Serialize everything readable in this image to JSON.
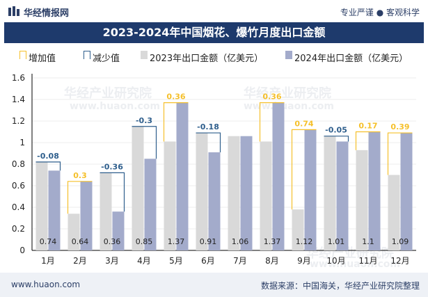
{
  "header": {
    "brand": "华经情报网",
    "slogan": "专业严谨 ● 客观科学",
    "title": "2023-2024年中国烟花、爆竹月度出口金额"
  },
  "legend": {
    "increase": "增加值",
    "decrease": "减少值",
    "series2023": "2023年出口金额（亿美元）",
    "series2024": "2024年出口金额（亿美元）"
  },
  "colors": {
    "bar2023": "#d9d9d9",
    "bar2024": "#a3abcb",
    "increase": "#f5c02b",
    "decrease": "#2e5e8c",
    "title_bg": "#1e3a6c"
  },
  "chart_data": {
    "type": "bar",
    "categories": [
      "1月",
      "2月",
      "3月",
      "4月",
      "5月",
      "6月",
      "7月",
      "8月",
      "9月",
      "10月",
      "11月",
      "12月"
    ],
    "series": [
      {
        "name": "2023年出口金额（亿美元）",
        "values": [
          0.82,
          0.34,
          0.72,
          1.15,
          1.01,
          1.09,
          1.06,
          1.01,
          0.38,
          1.06,
          0.93,
          0.7
        ]
      },
      {
        "name": "2024年出口金额（亿美元）",
        "values": [
          0.74,
          0.64,
          0.36,
          0.85,
          1.37,
          0.91,
          1.06,
          1.37,
          1.12,
          1.01,
          1.1,
          1.09
        ]
      }
    ],
    "change_labels": [
      "-0.08",
      "0.3",
      "-0.36",
      "-0.3",
      "0.36",
      "-0.18",
      "",
      "0.36",
      "0.74",
      "-0.05",
      "0.17",
      "0.39"
    ],
    "value_labels": [
      "0.74",
      "0.64",
      "0.36",
      "0.85",
      "1.37",
      "0.91",
      "1.06",
      "1.37",
      "1.12",
      "1.01",
      "1.1",
      "1.09"
    ],
    "y_ticks": [
      "0",
      "0.2",
      "0.4",
      "0.6",
      "0.8",
      "1",
      "1.2",
      "1.4",
      "1.6"
    ],
    "ylim": [
      0,
      1.6
    ],
    "grid": true,
    "legend_position": "top"
  },
  "footer": {
    "site": "www.huaon.com",
    "source": "数据来源：中国海关，华经产业研究院整理"
  },
  "watermarks": [
    "华经产业研究院",
    "www.huaon.com"
  ]
}
